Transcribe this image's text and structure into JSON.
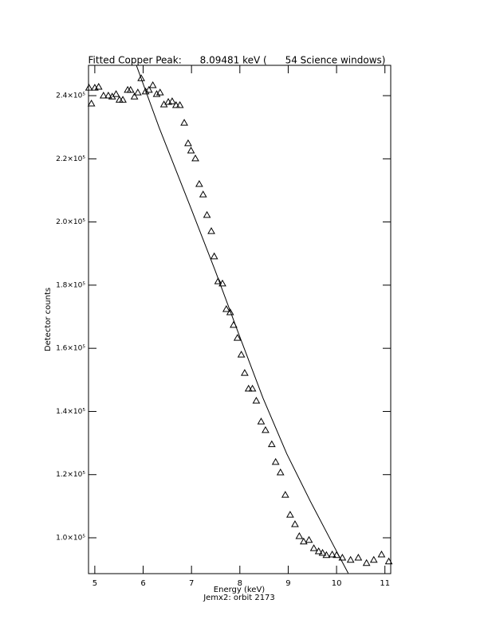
{
  "chart_data": {
    "type": "scatter",
    "title": "Fitted Copper Peak:      8.09481 keV (      54 Science windows)",
    "x_label": "Energy (keV)",
    "subtitle": "Jemx2: orbit 2173",
    "y_label": "Detector counts",
    "xlim": [
      4.87,
      11.12
    ],
    "ylim": [
      88650,
      249600
    ],
    "xticks": [
      5,
      6,
      7,
      8,
      9,
      10,
      11
    ],
    "yticks": [
      {
        "value": 100000,
        "label": "1.0×10⁵"
      },
      {
        "value": 120000,
        "label": "1.2×10⁵"
      },
      {
        "value": 140000,
        "label": "1.4×10⁵"
      },
      {
        "value": 160000,
        "label": "1.6×10⁵"
      },
      {
        "value": 180000,
        "label": "1.8×10⁵"
      },
      {
        "value": 200000,
        "label": "2.0×10⁵"
      },
      {
        "value": 220000,
        "label": "2.2×10⁵"
      },
      {
        "value": 240000,
        "label": "2.4×10⁵"
      }
    ],
    "series": [
      {
        "marker": "triangle",
        "color": "#000000",
        "x": [
          4.88,
          4.93,
          5.0,
          5.08,
          5.18,
          5.28,
          5.36,
          5.44,
          5.51,
          5.58,
          5.68,
          5.74,
          5.82,
          5.89,
          5.96,
          6.05,
          6.12,
          6.2,
          6.28,
          6.35,
          6.43,
          6.52,
          6.6,
          6.68,
          6.76,
          6.85,
          6.93,
          6.99,
          7.08,
          7.16,
          7.24,
          7.32,
          7.41,
          7.47,
          7.55,
          7.64,
          7.72,
          7.8,
          7.87,
          7.95,
          8.03,
          8.1,
          8.18,
          8.26,
          8.34,
          8.44,
          8.53,
          8.66,
          8.74,
          8.84,
          8.94,
          9.04,
          9.14,
          9.23,
          9.32,
          9.43,
          9.53,
          9.63,
          9.71,
          9.79,
          9.91,
          10.0,
          10.12,
          10.29,
          10.45,
          10.62,
          10.77,
          10.93,
          11.08
        ],
        "values": [
          242500,
          237500,
          242500,
          242800,
          240000,
          240000,
          239700,
          240500,
          238700,
          238700,
          241800,
          241800,
          239700,
          241000,
          245500,
          241300,
          241800,
          243300,
          240500,
          241000,
          237200,
          238000,
          238200,
          237000,
          237000,
          231400,
          224900,
          222600,
          220100,
          212000,
          208700,
          202200,
          197100,
          189100,
          181200,
          180500,
          172400,
          171400,
          167400,
          163300,
          158000,
          152200,
          147200,
          147200,
          143400,
          136800,
          134100,
          129600,
          124000,
          120700,
          113600,
          107300,
          104300,
          100500,
          98800,
          99300,
          96700,
          95700,
          95200,
          94500,
          94700,
          94500,
          93700,
          93000,
          93700,
          92000,
          93000,
          94700,
          92500
        ]
      },
      {
        "marker": "line",
        "color": "#000000",
        "x": [
          5.86,
          6.33,
          6.99,
          7.49,
          7.98,
          8.48,
          8.97,
          9.46,
          9.96,
          10.24
        ],
        "values": [
          249600,
          229900,
          204300,
          184600,
          164400,
          144200,
          126600,
          111500,
          96900,
          88800
        ]
      }
    ]
  }
}
